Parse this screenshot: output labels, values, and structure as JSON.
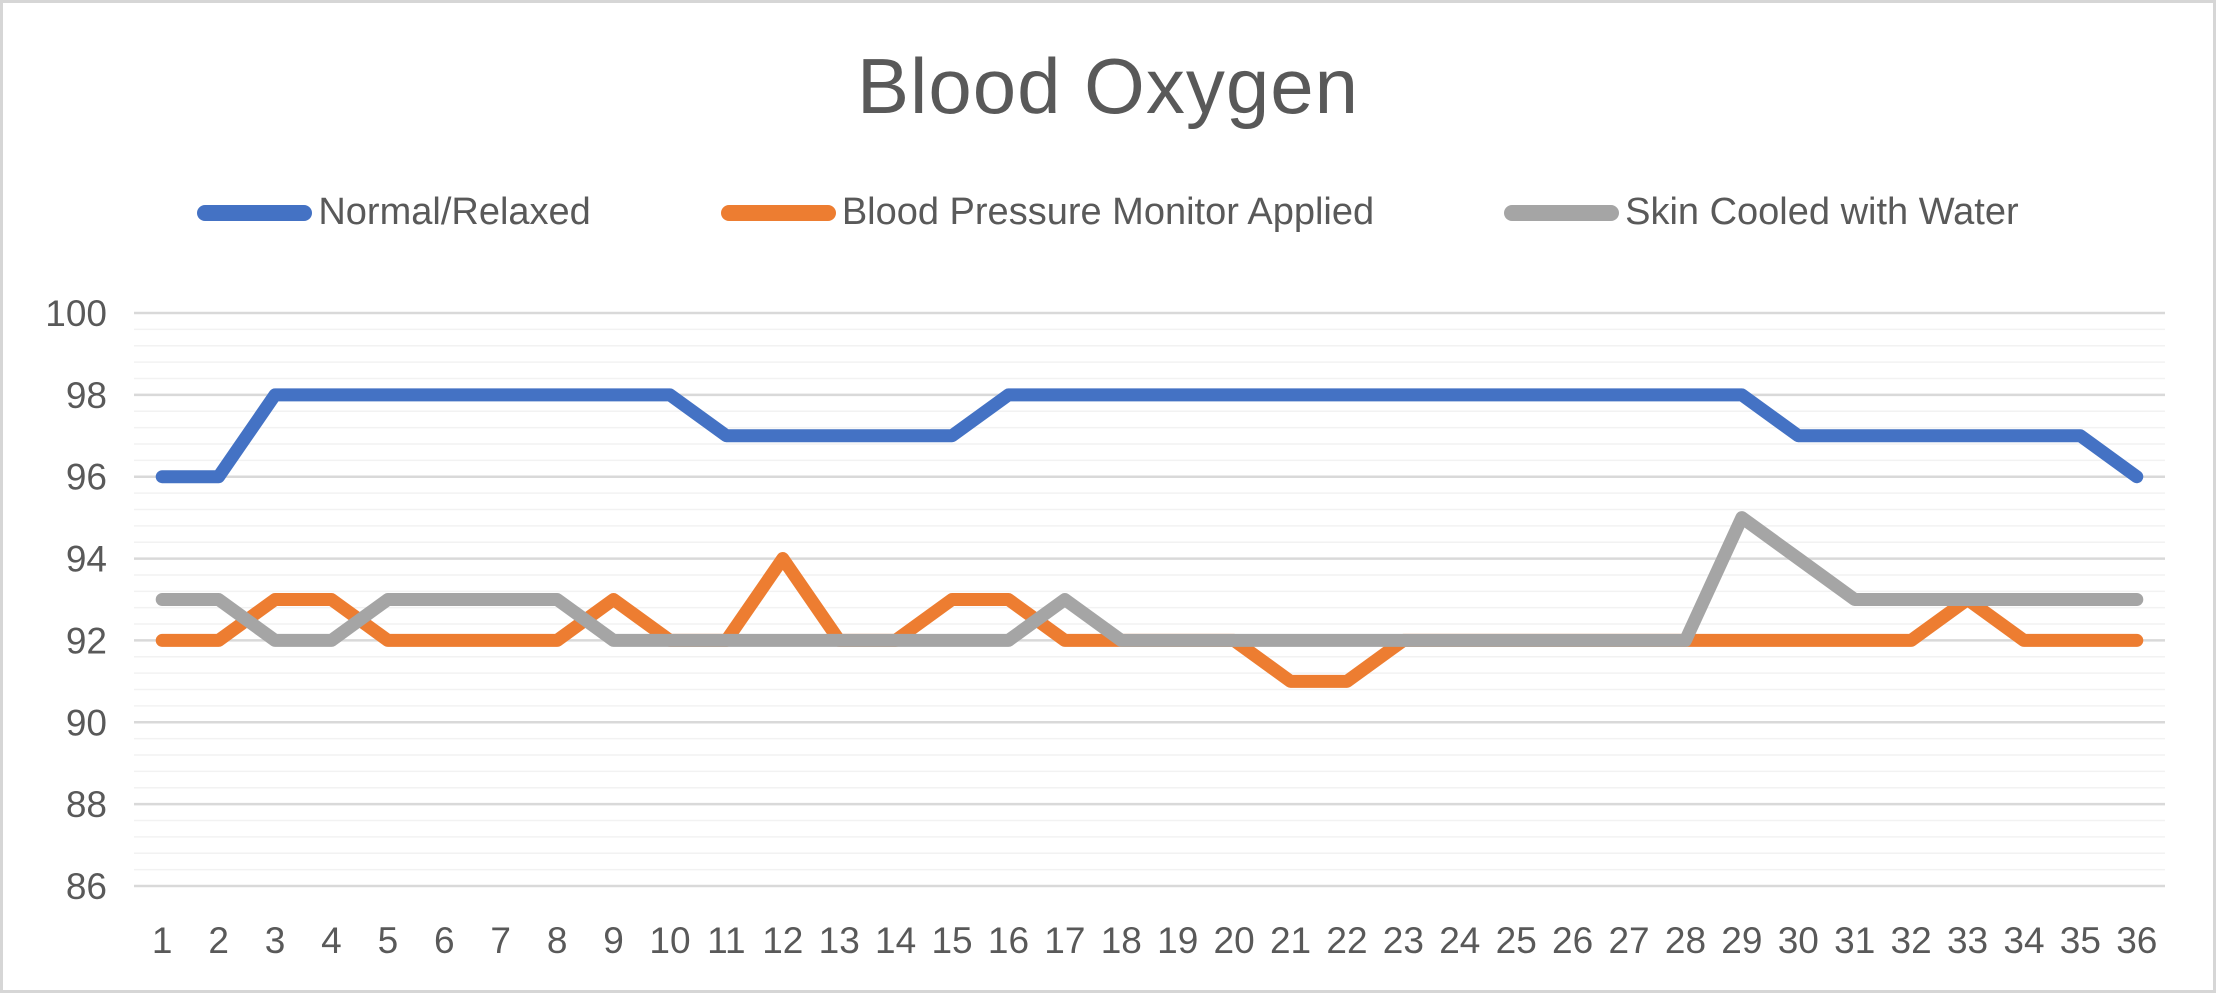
{
  "chart_data": {
    "type": "line",
    "title": "Blood Oxygen",
    "x": [
      1,
      2,
      3,
      4,
      5,
      6,
      7,
      8,
      9,
      10,
      11,
      12,
      13,
      14,
      15,
      16,
      17,
      18,
      19,
      20,
      21,
      22,
      23,
      24,
      25,
      26,
      27,
      28,
      29,
      30,
      31,
      32,
      33,
      34,
      35,
      36
    ],
    "series": [
      {
        "name": "Normal/Relaxed",
        "color": "#4472C4",
        "values": [
          96,
          96,
          98,
          98,
          98,
          98,
          98,
          98,
          98,
          98,
          97,
          97,
          97,
          97,
          97,
          98,
          98,
          98,
          98,
          98,
          98,
          98,
          98,
          98,
          98,
          98,
          98,
          98,
          98,
          97,
          97,
          97,
          97,
          97,
          97,
          96
        ]
      },
      {
        "name": "Blood Pressure Monitor Applied",
        "color": "#ED7D31",
        "values": [
          92,
          92,
          93,
          93,
          92,
          92,
          92,
          92,
          93,
          92,
          92,
          94,
          92,
          92,
          93,
          93,
          92,
          92,
          92,
          92,
          91,
          91,
          92,
          92,
          92,
          92,
          92,
          92,
          92,
          92,
          92,
          92,
          93,
          92,
          92,
          92
        ]
      },
      {
        "name": "Skin Cooled with Water",
        "color": "#A5A5A5",
        "values": [
          93,
          93,
          92,
          92,
          93,
          93,
          93,
          93,
          92,
          92,
          92,
          92,
          92,
          92,
          92,
          92,
          93,
          92,
          92,
          92,
          92,
          92,
          92,
          92,
          92,
          92,
          92,
          92,
          95,
          94,
          93,
          93,
          93,
          93,
          93,
          93
        ]
      }
    ],
    "xlabel": "",
    "ylabel": "",
    "ylim": [
      86,
      100
    ],
    "y_major_ticks": [
      100,
      98,
      96,
      94,
      92,
      90,
      88,
      86
    ],
    "y_major_unit": 2,
    "y_minor_unit": 0.4,
    "grid": "major+minor",
    "legend_position": "top",
    "colors": {
      "title_text": "#595959",
      "axis_text": "#595959",
      "legend_text": "#595959",
      "gridline_major": "#D9D9D9",
      "gridline_minor": "#F2F2F2",
      "chart_border": "#D6D6D6",
      "background": "#FFFFFF"
    }
  }
}
